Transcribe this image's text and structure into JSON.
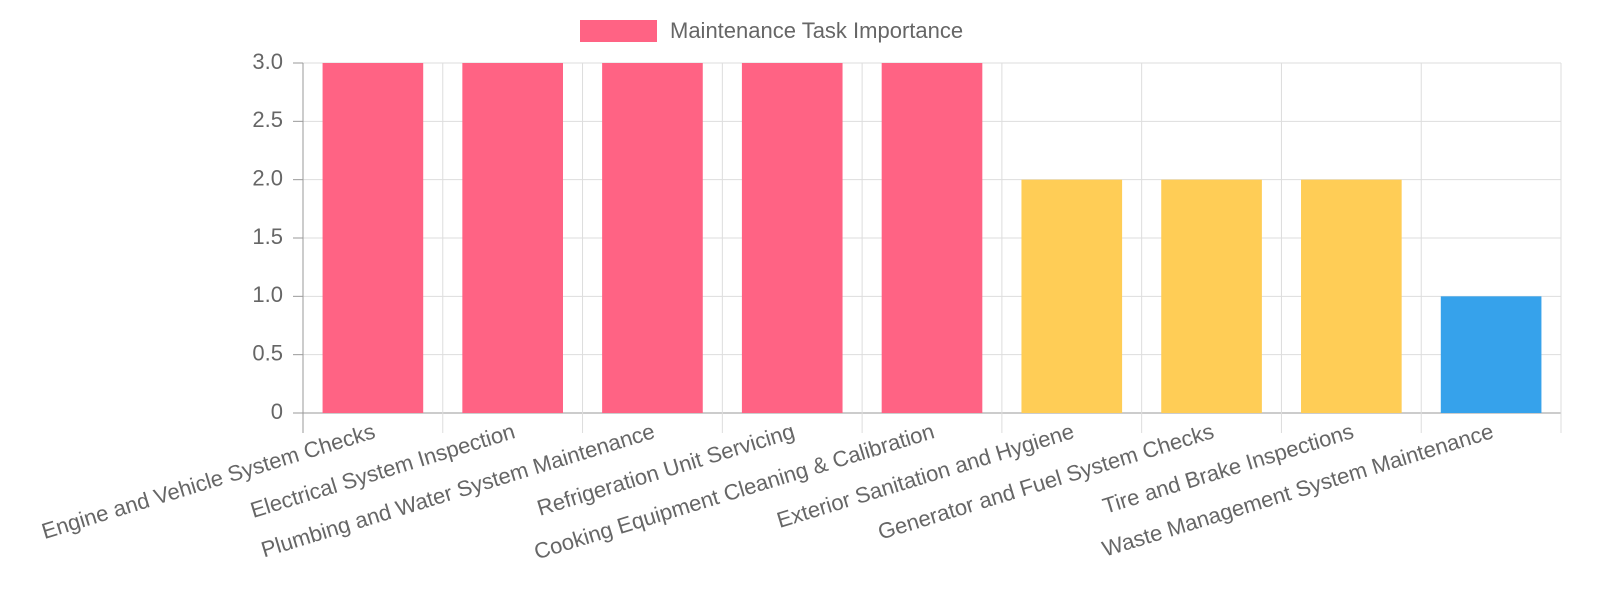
{
  "chart_data": {
    "type": "bar",
    "categories": [
      "Engine and Vehicle System Checks",
      "Electrical System Inspection",
      "Plumbing and Water System Maintenance",
      "Refrigeration Unit Servicing",
      "Cooking Equipment Cleaning & Calibration",
      "Exterior Sanitation and Hygiene",
      "Generator and Fuel System Checks",
      "Tire and Brake Inspections",
      "Waste Management System Maintenance"
    ],
    "series": [
      {
        "name": "Maintenance Task Importance",
        "color": "#ff6384",
        "values": [
          3,
          3,
          3,
          3,
          3,
          2,
          2,
          2,
          1
        ],
        "colors": [
          "#ff6384",
          "#ff6384",
          "#ff6384",
          "#ff6384",
          "#ff6384",
          "#ffcd56",
          "#ffcd56",
          "#ffcd56",
          "#36a2eb"
        ]
      }
    ],
    "ylim": [
      0,
      3
    ],
    "yticks": [
      0,
      {
        "value": 0.5,
        "label": "0.5"
      },
      {
        "value": 1,
        "label": "1.0"
      },
      {
        "value": 1.5,
        "label": "1.5"
      },
      {
        "value": 2,
        "label": "2.0"
      },
      {
        "value": 2.5,
        "label": "2.5"
      },
      {
        "value": 3,
        "label": "3.0"
      }
    ],
    "grid": true,
    "legend": "top"
  }
}
